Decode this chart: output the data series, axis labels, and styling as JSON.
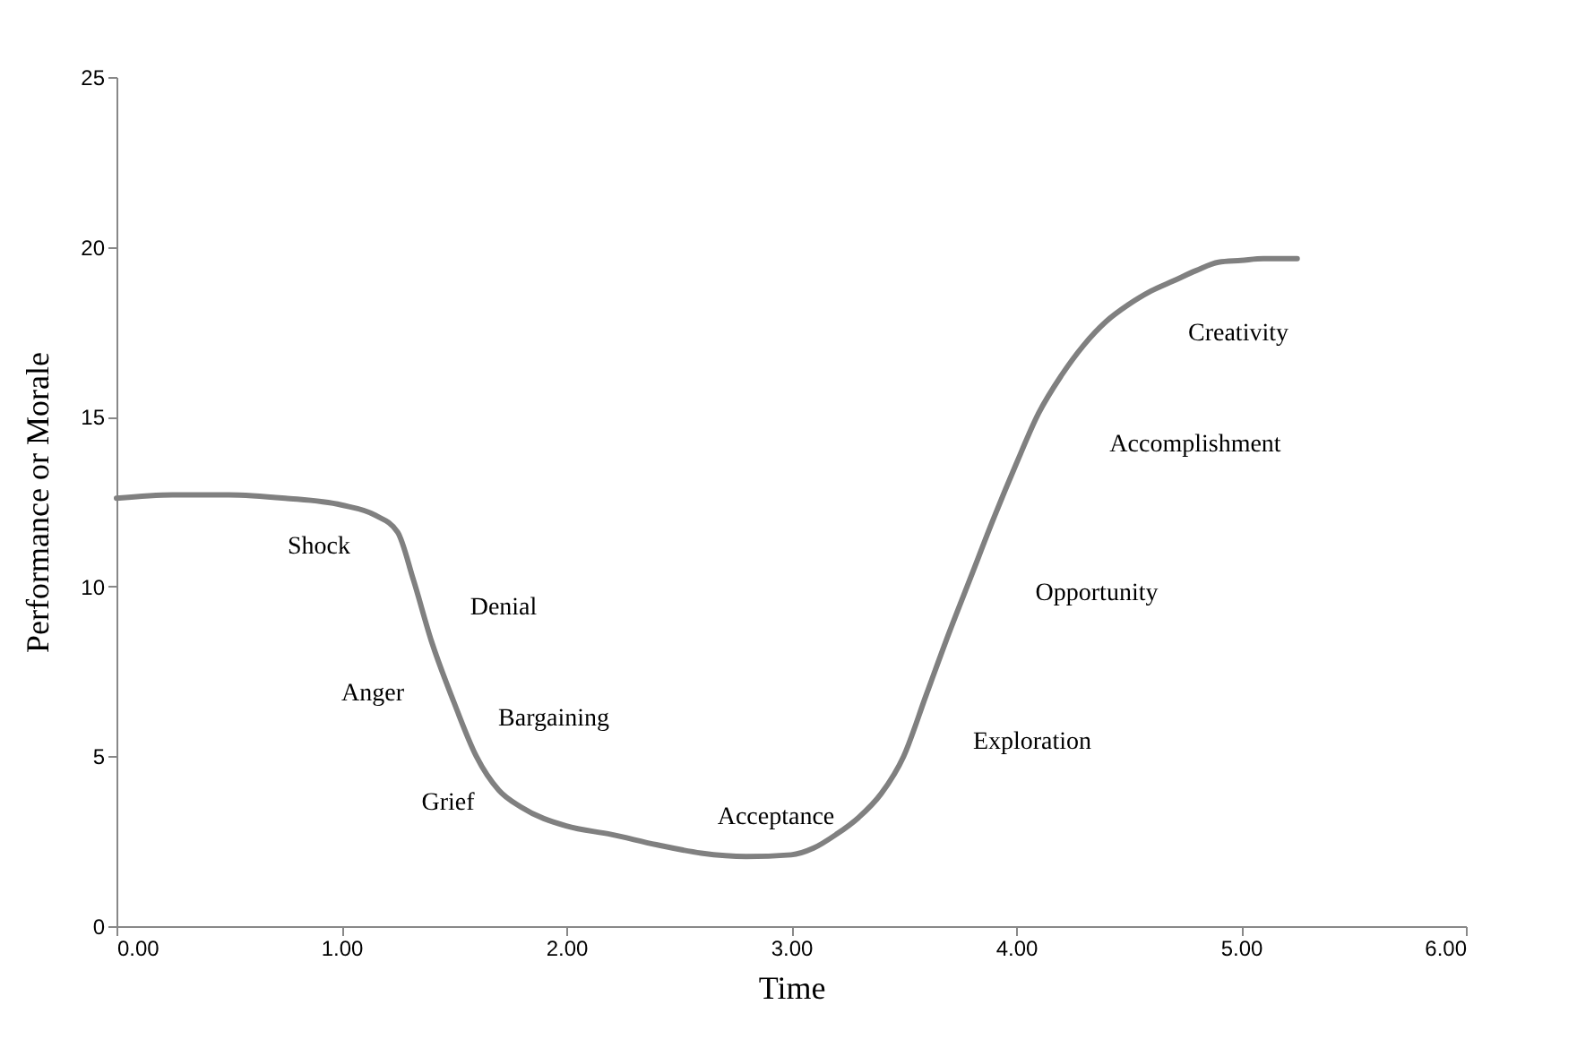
{
  "chart_data": {
    "type": "line",
    "xlabel": "Time",
    "ylabel": "Performance or Morale",
    "x": [
      0,
      0.25,
      0.5,
      0.75,
      1.0,
      1.15,
      1.25,
      1.32,
      1.4,
      1.5,
      1.6,
      1.7,
      1.8,
      2.0,
      2.2,
      2.4,
      2.6,
      2.8,
      3.0,
      3.1,
      3.2,
      3.3,
      3.4,
      3.5,
      3.6,
      3.7,
      3.8,
      3.9,
      4.0,
      4.1,
      4.2,
      4.3,
      4.4,
      4.5,
      4.6,
      4.7,
      4.8,
      4.9,
      5.0,
      5.1,
      5.25
    ],
    "series": [
      {
        "color": "#808080",
        "values": [
          12.6,
          12.7,
          12.7,
          12.6,
          12.4,
          12.1,
          11.6,
          10.2,
          8.4,
          6.6,
          5.0,
          4.0,
          3.5,
          2.95,
          2.7,
          2.4,
          2.15,
          2.05,
          2.1,
          2.3,
          2.7,
          3.2,
          3.9,
          5.0,
          6.8,
          8.6,
          10.3,
          12.0,
          13.6,
          15.1,
          16.2,
          17.1,
          17.8,
          18.3,
          18.7,
          19.0,
          19.3,
          19.55,
          19.6,
          19.65,
          19.65
        ]
      }
    ],
    "xlim": [
      0,
      6
    ],
    "xticks": [
      {
        "value": 0,
        "label": "0.00"
      },
      {
        "value": 1,
        "label": "1.00"
      },
      {
        "value": 2,
        "label": "2.00"
      },
      {
        "value": 3,
        "label": "3.00"
      },
      {
        "value": 4,
        "label": "4.00"
      },
      {
        "value": 5,
        "label": "5.00"
      },
      {
        "value": 6,
        "label": "6.00"
      }
    ],
    "ylim": [
      0,
      25
    ],
    "yticks": [
      0,
      5,
      10,
      15,
      20,
      25
    ],
    "grid": false,
    "legend": false,
    "marker": "none",
    "line_style": "solid",
    "annotations": [
      "Shock",
      "Denial",
      "Anger",
      "Bargaining",
      "Grief",
      "Acceptance",
      "Exploration",
      "Opportunity",
      "Accomplishment",
      "Creativity"
    ]
  }
}
